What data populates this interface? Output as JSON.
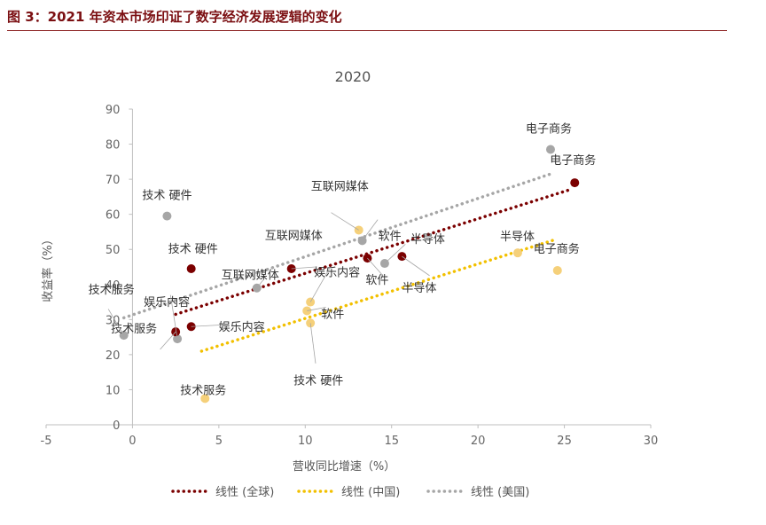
{
  "figure_title": "图 3：2021 年资本市场印证了数字经济发展逻辑的变化",
  "chart_data": {
    "type": "scatter",
    "title": "2020",
    "xlabel": "营收同比增速（%）",
    "ylabel": "收益率（%）",
    "xlim": [
      -5,
      30
    ],
    "ylim": [
      0,
      90
    ],
    "xticks": [
      -5,
      0,
      5,
      10,
      15,
      20,
      25,
      30
    ],
    "yticks": [
      0,
      10,
      20,
      30,
      40,
      50,
      60,
      70,
      80,
      90
    ],
    "series": [
      {
        "name": "全球",
        "color": "#7b0000",
        "points": [
          {
            "label": "电子商务",
            "x": 25.6,
            "y": 69
          },
          {
            "label": "半导体",
            "x": 15.6,
            "y": 48
          },
          {
            "label": "软件",
            "x": 13.6,
            "y": 47.5
          },
          {
            "label": "互联网媒体",
            "x": 9.2,
            "y": 44.5
          },
          {
            "label": "技术 硬件",
            "x": 3.4,
            "y": 44.5
          },
          {
            "label": "娱乐内容",
            "x": 3.4,
            "y": 28
          },
          {
            "label": "技术服务",
            "x": 2.5,
            "y": 26.5
          }
        ]
      },
      {
        "name": "中国",
        "color": "#f5d07a",
        "points": [
          {
            "label": "电子商务",
            "x": 24.6,
            "y": 44
          },
          {
            "label": "半导体",
            "x": 22.3,
            "y": 49
          },
          {
            "label": "互联网媒体",
            "x": 13.1,
            "y": 55.5
          },
          {
            "label": "娱乐内容",
            "x": 10.3,
            "y": 35
          },
          {
            "label": "软件",
            "x": 10.1,
            "y": 32.5
          },
          {
            "label": "技术 硬件",
            "x": 10.3,
            "y": 29
          },
          {
            "label": "技术服务",
            "x": 4.2,
            "y": 7.5
          }
        ]
      },
      {
        "name": "美国",
        "color": "#a6a6a6",
        "points": [
          {
            "label": "电子商务",
            "x": 24.2,
            "y": 78.5
          },
          {
            "label": "软件",
            "x": 13.3,
            "y": 52.5
          },
          {
            "label": "半导体",
            "x": 14.6,
            "y": 46
          },
          {
            "label": "技术 硬件",
            "x": 2.0,
            "y": 59.5
          },
          {
            "label": "互联网媒体",
            "x": 7.2,
            "y": 39
          },
          {
            "label": "娱乐内容",
            "x": 2.6,
            "y": 24.5
          },
          {
            "label": "技术服务",
            "x": -0.5,
            "y": 25.5
          }
        ]
      }
    ],
    "trendlines": [
      {
        "name": "线性 (全球)",
        "color": "#7b0000",
        "x0": 2.5,
        "y0": 31.5,
        "x1": 25.3,
        "y1": 67
      },
      {
        "name": "线性 (中国)",
        "color": "#f2c000",
        "x0": 4.0,
        "y0": 21,
        "x1": 24.6,
        "y1": 53
      },
      {
        "name": "线性 (美国)",
        "color": "#a6a6a6",
        "x0": -0.5,
        "y0": 30.5,
        "x1": 24.2,
        "y1": 71.5
      }
    ],
    "legend_position": "bottom"
  }
}
